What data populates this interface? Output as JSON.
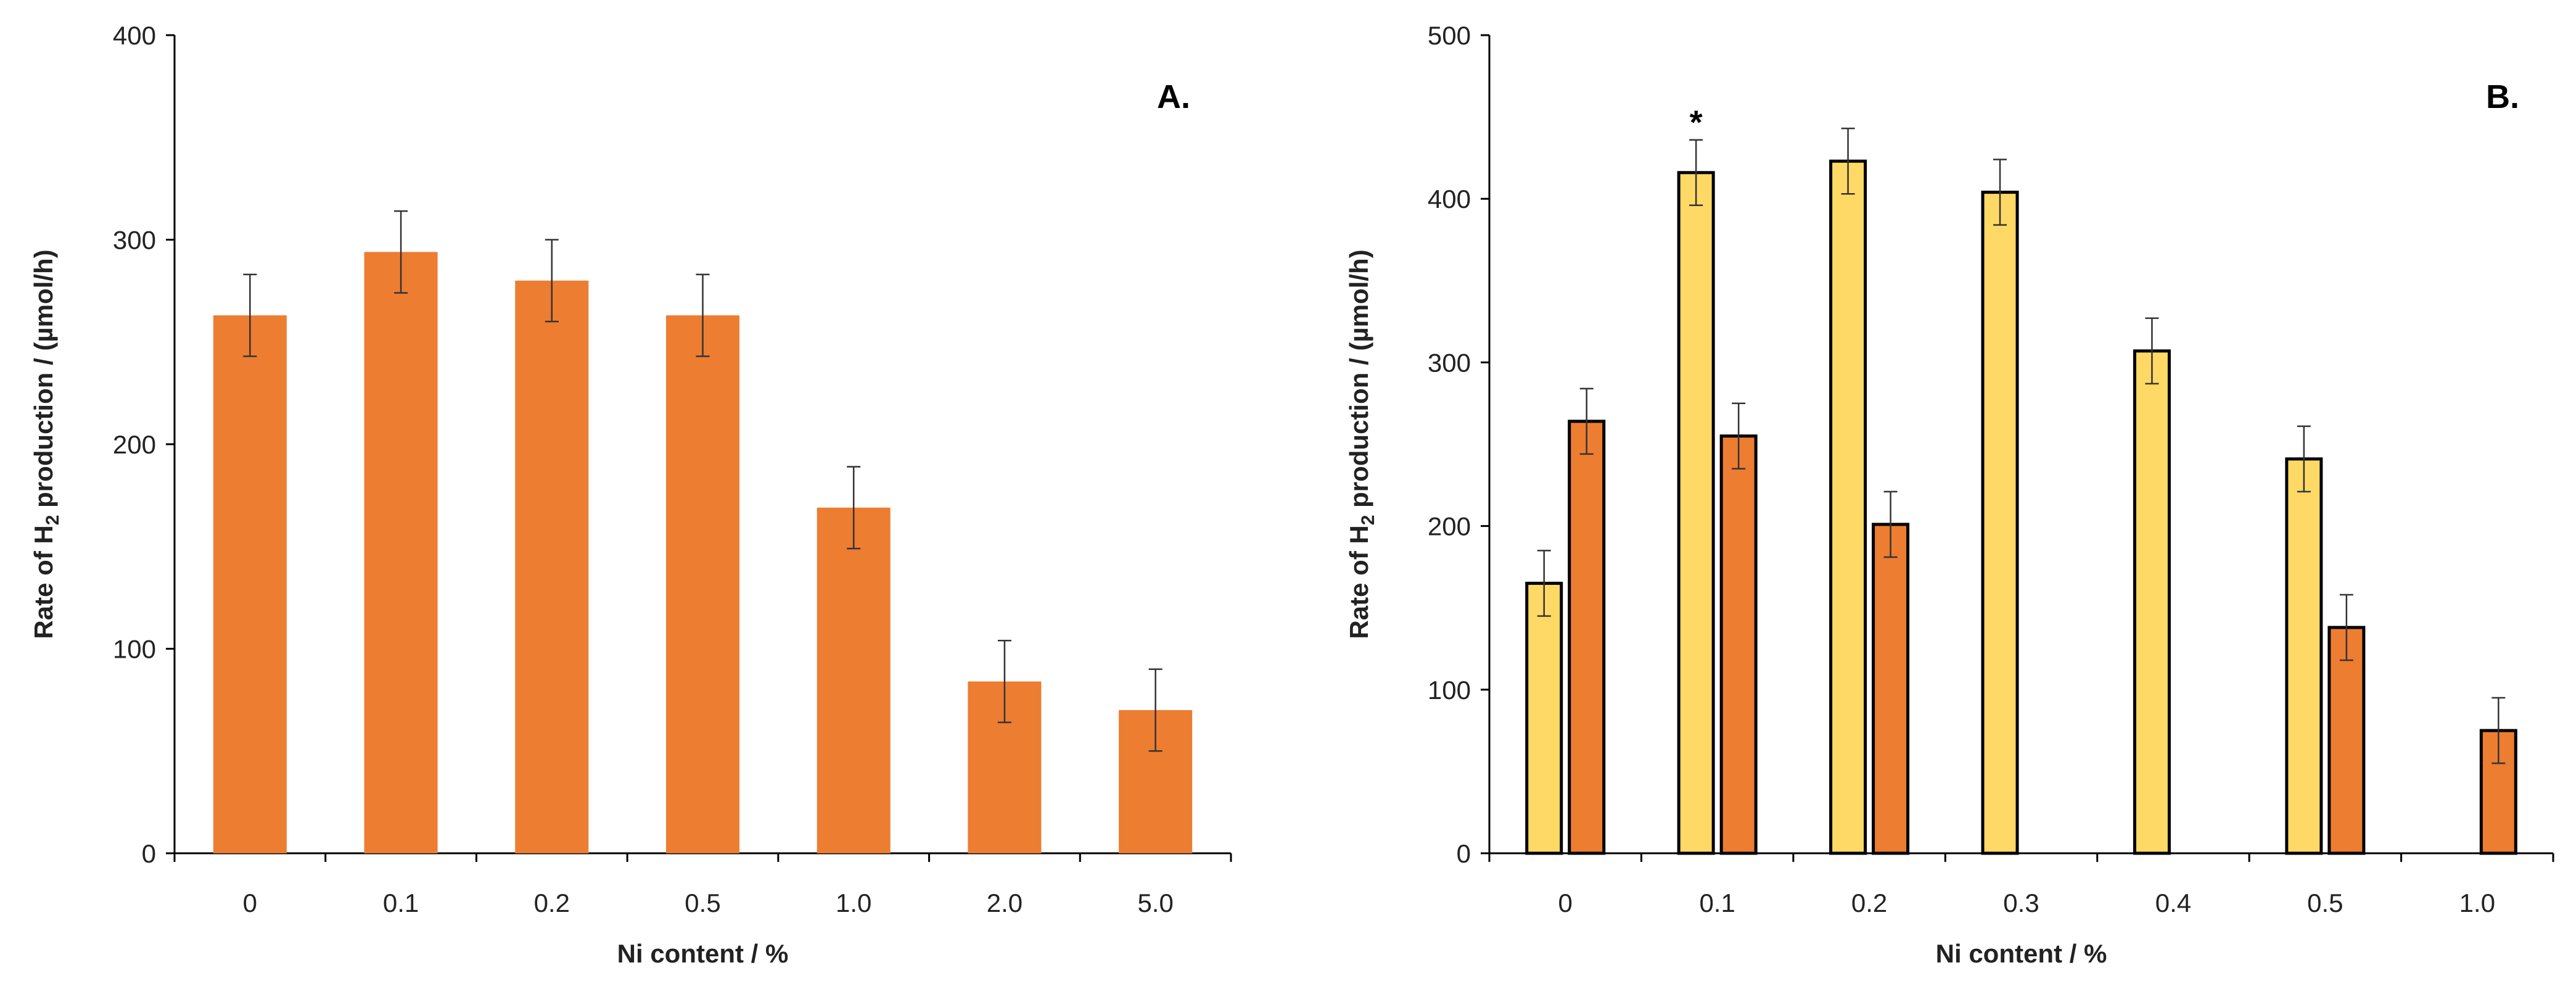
{
  "chart_data": [
    {
      "type": "bar",
      "panel_label": "A.",
      "title": "",
      "xlabel": "Ni content / %",
      "ylabel": "Rate of H2 production / (µmol/h)",
      "ylabel_parts": {
        "before": "Rate of H",
        "sub": "2",
        "after": " production / (µmol/h)"
      },
      "ylim": [
        0,
        400
      ],
      "yticks": [
        "0",
        "100",
        "200",
        "300",
        "400"
      ],
      "categories": [
        "0",
        "0.1",
        "0.2",
        "0.5",
        "1.0",
        "2.0",
        "5.0"
      ],
      "series": [
        {
          "name": "series-1",
          "color": "#ED7D31",
          "outline": false,
          "values": [
            263,
            294,
            280,
            263,
            169,
            84,
            70
          ],
          "errors": [
            20,
            20,
            20,
            20,
            20,
            20,
            20
          ]
        }
      ]
    },
    {
      "type": "bar",
      "panel_label": "B.",
      "title": "",
      "xlabel": "Ni content / %",
      "ylabel": "Rate of H2 production / (µmol/h)",
      "ylabel_parts": {
        "before": "Rate of H",
        "sub": "2",
        "after": " production / (µmol/h)"
      },
      "ylim": [
        0,
        500
      ],
      "yticks": [
        "0",
        "100",
        "200",
        "300",
        "400",
        "500"
      ],
      "categories": [
        "0",
        "0.1",
        "0.2",
        "0.3",
        "0.4",
        "0.5",
        "1.0"
      ],
      "annotation": {
        "text": "*",
        "category_index": 1,
        "series_index": 0
      },
      "series": [
        {
          "name": "yellow",
          "color": "#FFD966",
          "outline": true,
          "values": [
            165,
            416,
            423,
            404,
            307,
            241,
            null
          ],
          "errors": [
            20,
            20,
            20,
            20,
            20,
            20,
            null
          ]
        },
        {
          "name": "orange",
          "color": "#ED7D31",
          "outline": true,
          "values": [
            264,
            255,
            201,
            null,
            null,
            138,
            75
          ],
          "errors": [
            20,
            20,
            20,
            null,
            null,
            20,
            20
          ]
        }
      ]
    }
  ]
}
